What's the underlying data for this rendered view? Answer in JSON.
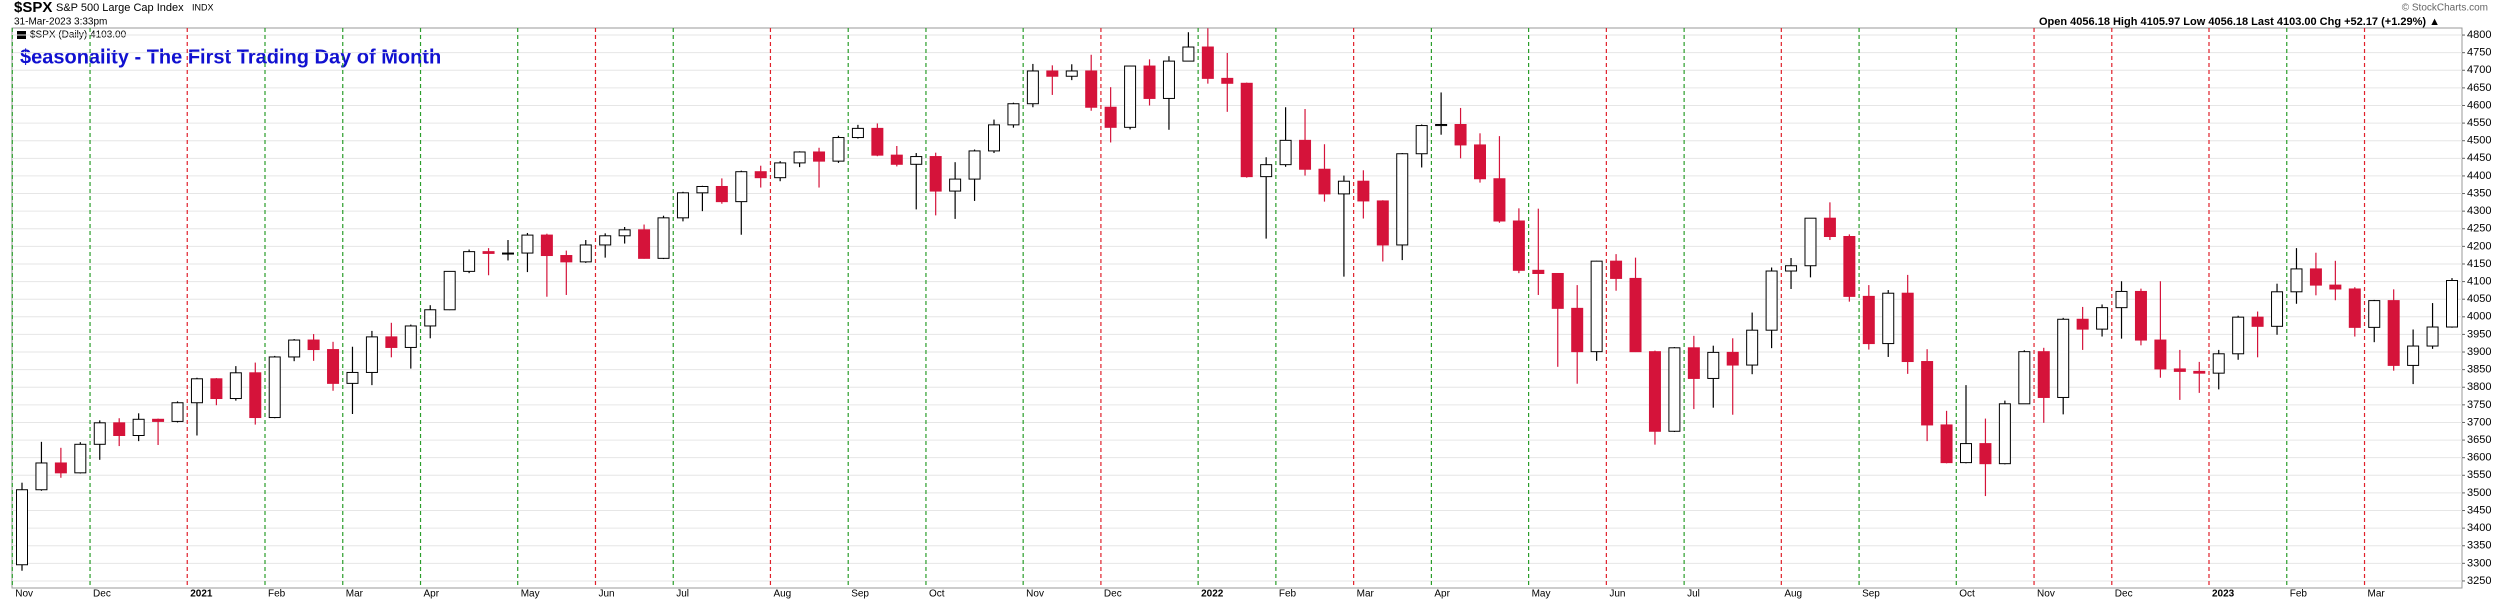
{
  "chart_data": {
    "type": "candlestick",
    "symbol": "$SPX",
    "name": "S&P 500 Large Cap Index",
    "exchange": "INDX",
    "timestamp": "31-Mar-2023 3:33pm",
    "legend_label": "$SPX (Daily) 4103.00",
    "quote": "Open 4056.18 High 4105.97 Low 4056.18 Last 4103.00 Chg +52.17 (+1.29%) ▲",
    "credit": "© StockCharts.com",
    "title": "$easonality - The First Trading Day of Month",
    "up_color": "#ffffff",
    "down_color": "#d5133a",
    "grid": true,
    "ylim": [
      3230,
      4820
    ],
    "yticks": [
      3250,
      3300,
      3350,
      3400,
      3450,
      3500,
      3550,
      3600,
      3650,
      3700,
      3750,
      3800,
      3850,
      3900,
      3950,
      4000,
      4050,
      4100,
      4150,
      4200,
      4250,
      4300,
      4350,
      4400,
      4450,
      4500,
      4550,
      4600,
      4650,
      4700,
      4750,
      4800
    ],
    "xticks": [
      {
        "value": 0,
        "label": "Nov"
      },
      {
        "value": 4,
        "label": "Dec"
      },
      {
        "value": 9,
        "label": "2021"
      },
      {
        "value": 13,
        "label": "Feb"
      },
      {
        "value": 17,
        "label": "Mar"
      },
      {
        "value": 21,
        "label": "Apr"
      },
      {
        "value": 26,
        "label": "May"
      },
      {
        "value": 30,
        "label": "Jun"
      },
      {
        "value": 34,
        "label": "Jul"
      },
      {
        "value": 39,
        "label": "Aug"
      },
      {
        "value": 43,
        "label": "Sep"
      },
      {
        "value": 47,
        "label": "Oct"
      },
      {
        "value": 52,
        "label": "Nov"
      },
      {
        "value": 56,
        "label": "Dec"
      },
      {
        "value": 61,
        "label": "2022"
      },
      {
        "value": 65,
        "label": "Feb"
      },
      {
        "value": 69,
        "label": "Mar"
      },
      {
        "value": 73,
        "label": "Apr"
      },
      {
        "value": 78,
        "label": "May"
      },
      {
        "value": 82,
        "label": "Jun"
      },
      {
        "value": 86,
        "label": "Jul"
      },
      {
        "value": 91,
        "label": "Aug"
      },
      {
        "value": 95,
        "label": "Sep"
      },
      {
        "value": 100,
        "label": "Oct"
      },
      {
        "value": 104,
        "label": "Nov"
      },
      {
        "value": 108,
        "label": "Dec"
      },
      {
        "value": 113,
        "label": "2023"
      },
      {
        "value": 117,
        "label": "Feb"
      },
      {
        "value": 121,
        "label": "Mar"
      }
    ],
    "month_line_colors": [
      "#2a9d2a",
      "#2a9d2a",
      "#e0202a",
      "#2a9d2a",
      "#2a9d2a",
      "#2a9d2a",
      "#2a9d2a",
      "#e0202a",
      "#2a9d2a",
      "#e0202a",
      "#2a9d2a",
      "#2a9d2a",
      "#2a9d2a",
      "#e0202a",
      "#2a9d2a",
      "#2a9d2a",
      "#e0202a",
      "#2a9d2a",
      "#2a9d2a",
      "#e0202a",
      "#2a9d2a",
      "#e0202a",
      "#2a9d2a",
      "#2a9d2a",
      "#e0202a",
      "#e0202a",
      "#e0202a",
      "#2a9d2a",
      "#e0202a"
    ],
    "categories": [
      null,
      null,
      null,
      null,
      null,
      null,
      null,
      null,
      null,
      null,
      null,
      null,
      null,
      null,
      null,
      null,
      null,
      null,
      null,
      null,
      null,
      null,
      null,
      null,
      null,
      null,
      null,
      null,
      null,
      null,
      null,
      null,
      null,
      null,
      null,
      null,
      null,
      null,
      null,
      null,
      null,
      null,
      null,
      null,
      null,
      null,
      null,
      null,
      null,
      null,
      null,
      null,
      null,
      null,
      null,
      null,
      null,
      null,
      null,
      null,
      null,
      null,
      null,
      null,
      null,
      null,
      null,
      null,
      null,
      null,
      null,
      null,
      null,
      null,
      null,
      null,
      null,
      null,
      null,
      null,
      null,
      null,
      null,
      null,
      null,
      null,
      null,
      null,
      null,
      null,
      null,
      null,
      null,
      null,
      null,
      null,
      null,
      null,
      null,
      null,
      null,
      null,
      null,
      null,
      null,
      null,
      null,
      null,
      null,
      null,
      null,
      null,
      null,
      null,
      null,
      null,
      null,
      null,
      null,
      null,
      null,
      null,
      null,
      null,
      null,
      null
    ],
    "open": [
      3296,
      3509,
      3585,
      3557,
      3638,
      3699,
      3663,
      3709,
      3703,
      3756,
      3824,
      3768,
      3841,
      3714,
      3886,
      3934,
      3907,
      3811,
      3842,
      3943,
      3913,
      3974,
      4020,
      4129,
      4185,
      4180,
      4181,
      4232,
      4174,
      4156,
      4204,
      4230,
      4247,
      4166,
      4281,
      4352,
      4370,
      4327,
      4412,
      4395,
      4437,
      4468,
      4442,
      4509,
      4535,
      4459,
      4433,
      4455,
      4357,
      4391,
      4471,
      4545,
      4605,
      4698,
      4683,
      4698,
      4595,
      4538,
      4712,
      4620,
      4726,
      4766,
      4677,
      4663,
      4398,
      4432,
      4501,
      4419,
      4349,
      4385,
      4329,
      4204,
      4463,
      4543,
      4546,
      4488,
      4392,
      4272,
      4132,
      4123,
      4024,
      3901,
      4158,
      4109,
      3901,
      3675,
      3912,
      3825,
      3899,
      3863,
      3962,
      4130,
      4145,
      4280,
      4228,
      4058,
      3924,
      4067,
      3873,
      3693,
      3586,
      3640,
      3583,
      3753,
      3901,
      3771,
      3993,
      3965,
      4026,
      4072,
      3934,
      3852,
      3845,
      3840,
      3895,
      3999,
      3973,
      4071,
      4136,
      4090,
      4079,
      3970,
      4046,
      3862,
      3917,
      3971
    ],
    "high": [
      3529,
      3645,
      3628,
      3644,
      3706,
      3712,
      3726,
      3711,
      3760,
      3827,
      3826,
      3860,
      3870,
      3889,
      3937,
      3951,
      3929,
      3915,
      3960,
      3983,
      3978,
      4033,
      4130,
      4191,
      4195,
      4218,
      4238,
      4236,
      4188,
      4218,
      4237,
      4255,
      4262,
      4287,
      4355,
      4372,
      4393,
      4415,
      4429,
      4442,
      4470,
      4480,
      4514,
      4545,
      4549,
      4485,
      4465,
      4466,
      4439,
      4475,
      4560,
      4608,
      4718,
      4714,
      4717,
      4744,
      4652,
      4713,
      4731,
      4740,
      4808,
      4819,
      4749,
      4665,
      4453,
      4595,
      4590,
      4490,
      4401,
      4416,
      4331,
      4465,
      4546,
      4637,
      4593,
      4521,
      4513,
      4308,
      4307,
      4124,
      4090,
      4159,
      4178,
      4168,
      3904,
      3914,
      3946,
      3918,
      3939,
      4012,
      4140,
      4167,
      4280,
      4325,
      4234,
      4090,
      4076,
      4119,
      3908,
      3733,
      3806,
      3711,
      3762,
      3905,
      3912,
      3997,
      4028,
      4035,
      4101,
      4080,
      4101,
      3906,
      3872,
      3906,
      4003,
      4015,
      4094,
      4195,
      4182,
      4159,
      4084,
      4048,
      4078,
      3964,
      4039,
      4110
    ],
    "low": [
      3279,
      3506,
      3543,
      3555,
      3594,
      3633,
      3647,
      3636,
      3700,
      3663,
      3749,
      3762,
      3694,
      3712,
      3874,
      3875,
      3790,
      3724,
      3806,
      3885,
      3853,
      3939,
      4019,
      4124,
      4118,
      4160,
      4127,
      4057,
      4062,
      4153,
      4168,
      4208,
      4165,
      4164,
      4271,
      4300,
      4321,
      4233,
      4367,
      4385,
      4425,
      4367,
      4437,
      4506,
      4456,
      4427,
      4305,
      4288,
      4278,
      4329,
      4465,
      4537,
      4595,
      4630,
      4672,
      4585,
      4495,
      4532,
      4600,
      4531,
      4725,
      4662,
      4582,
      4395,
      4222,
      4426,
      4401,
      4327,
      4114,
      4279,
      4157,
      4161,
      4424,
      4517,
      4450,
      4381,
      4267,
      4124,
      4062,
      3858,
      3810,
      3875,
      4074,
      3900,
      3637,
      3673,
      3738,
      3742,
      3722,
      3837,
      3911,
      4079,
      4112,
      4218,
      4043,
      3907,
      3886,
      3838,
      3647,
      3584,
      3584,
      3491,
      3581,
      3753,
      3699,
      3723,
      3906,
      3944,
      3938,
      3919,
      3827,
      3764,
      3784,
      3794,
      3878,
      3885,
      3949,
      4037,
      4061,
      4047,
      3944,
      3928,
      3847,
      3809,
      3909,
      3969
    ],
    "close": [
      3509,
      3585,
      3557,
      3638,
      3699,
      3663,
      3709,
      3703,
      3756,
      3824,
      3768,
      3841,
      3714,
      3886,
      3934,
      3907,
      3811,
      3842,
      3943,
      3913,
      3974,
      4020,
      4129,
      4185,
      4180,
      4181,
      4232,
      4174,
      4156,
      4204,
      4230,
      4247,
      4166,
      4281,
      4352,
      4370,
      4327,
      4412,
      4395,
      4437,
      4468,
      4442,
      4509,
      4535,
      4459,
      4433,
      4455,
      4357,
      4391,
      4471,
      4545,
      4605,
      4698,
      4683,
      4698,
      4595,
      4538,
      4712,
      4620,
      4726,
      4766,
      4677,
      4663,
      4398,
      4432,
      4501,
      4419,
      4349,
      4385,
      4329,
      4204,
      4463,
      4543,
      4546,
      4488,
      4392,
      4272,
      4132,
      4123,
      4024,
      3901,
      4158,
      4109,
      3901,
      3675,
      3912,
      3825,
      3899,
      3863,
      3962,
      4130,
      4145,
      4280,
      4228,
      4058,
      3924,
      4067,
      3873,
      3693,
      3586,
      3640,
      3583,
      3753,
      3901,
      3771,
      3993,
      3965,
      4026,
      4072,
      3934,
      3852,
      3845,
      3840,
      3895,
      3999,
      3973,
      4071,
      4136,
      4090,
      4079,
      3970,
      4046,
      3862,
      3917,
      3971,
      4103
    ]
  }
}
